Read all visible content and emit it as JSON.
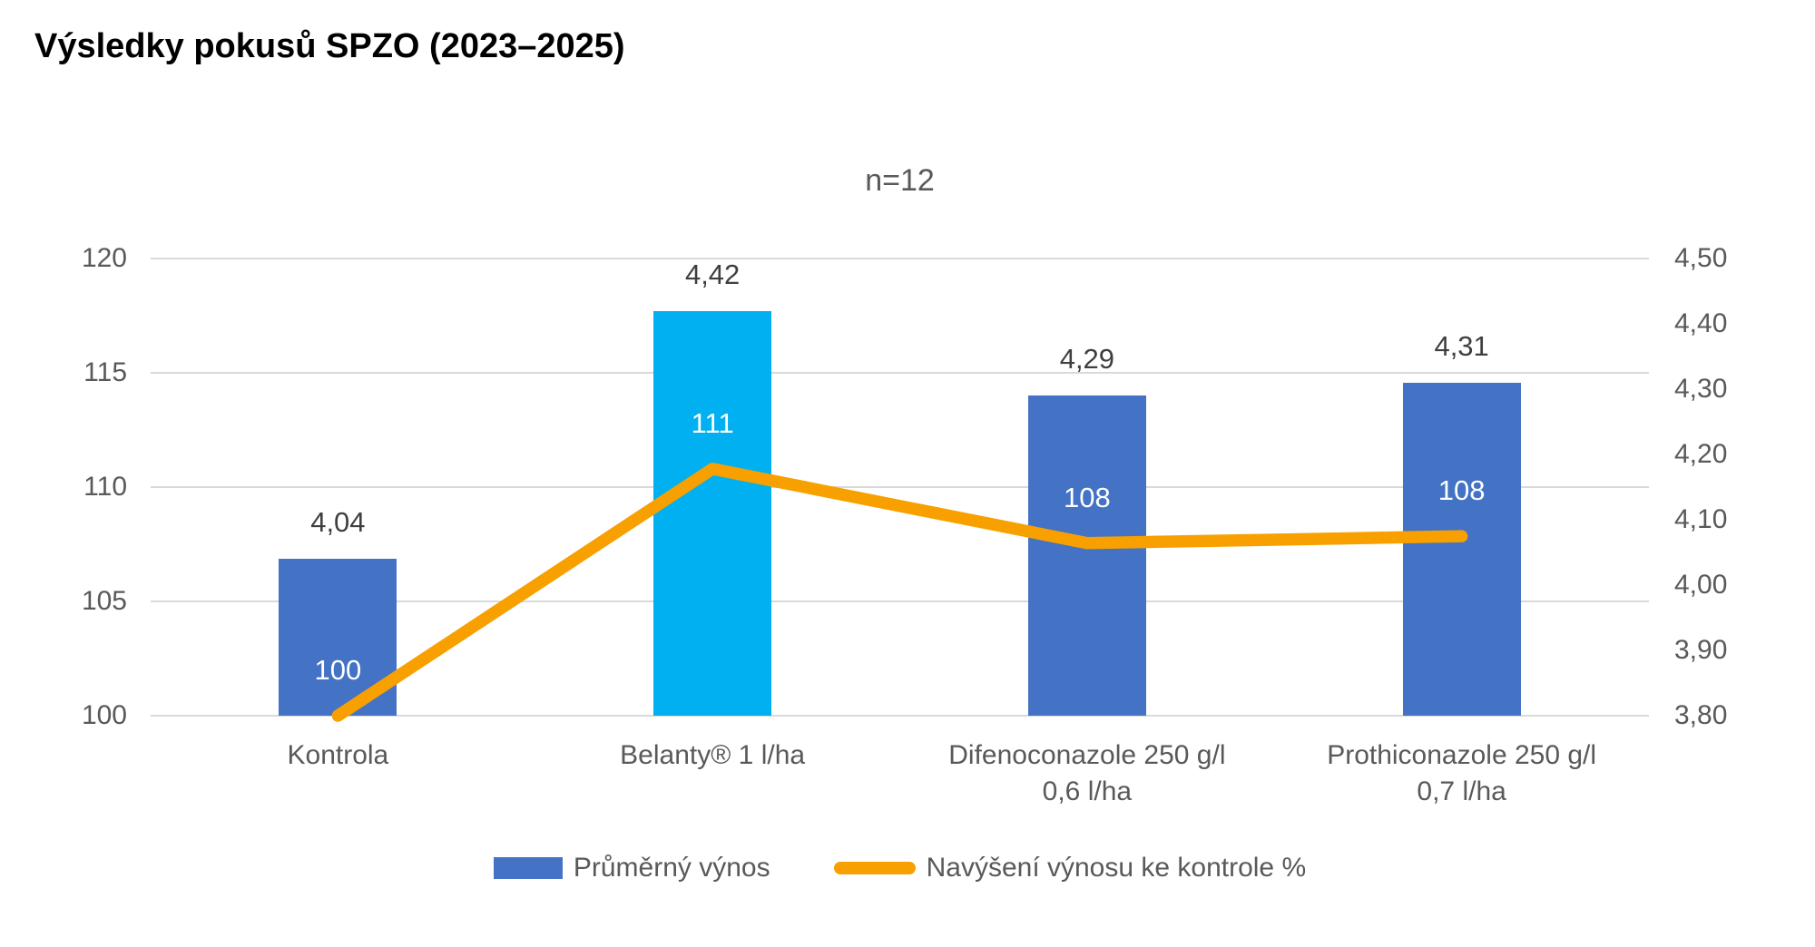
{
  "page": {
    "title": "Výsledky pokusů SPZO (2023–2025)"
  },
  "chart_data": {
    "type": "combo-bar-line",
    "title": "Výsledky pokusů SPZO (2023–2025)",
    "subtitle": "n=12",
    "categories": [
      [
        "Kontrola"
      ],
      [
        "Belanty® 1 l/ha"
      ],
      [
        "Difenoconazole 250 g/l",
        "0,6 l/ha"
      ],
      [
        "Prothiconazole 250 g/l",
        "0,7 l/ha"
      ]
    ],
    "series": [
      {
        "name": "Průměrný výnos",
        "type": "bar",
        "axis": "right",
        "values": [
          4.04,
          4.42,
          4.29,
          4.31
        ],
        "labels": [
          "4,04",
          "4,42",
          "4,29",
          "4,31"
        ],
        "color_default": "#4472C4",
        "bar_colors": [
          "#4472C4",
          "#00B0F0",
          "#4472C4",
          "#4472C4"
        ]
      },
      {
        "name": "Navýšení výnosu ke kontrole %",
        "type": "line",
        "axis": "left",
        "values": [
          100,
          110.8,
          107.55,
          107.85
        ],
        "labels": [
          "100",
          "111",
          "108",
          "108"
        ],
        "color": "#F7A000"
      }
    ],
    "left_axis": {
      "min": 100,
      "max": 120,
      "ticks": [
        "120",
        "115",
        "110",
        "105",
        "100"
      ]
    },
    "right_axis": {
      "min": 3.8,
      "max": 4.5,
      "ticks": [
        "4,50",
        "4,40",
        "4,30",
        "4,20",
        "4,10",
        "4,00",
        "3,90",
        "3,80"
      ]
    },
    "grid": "horizontal",
    "legend_position": "bottom",
    "colors": {
      "gridline": "#d9d9d9",
      "tick_text": "#595959",
      "bar_label_text": "#3f3f3f",
      "line_label_text": "#ffffff"
    }
  }
}
